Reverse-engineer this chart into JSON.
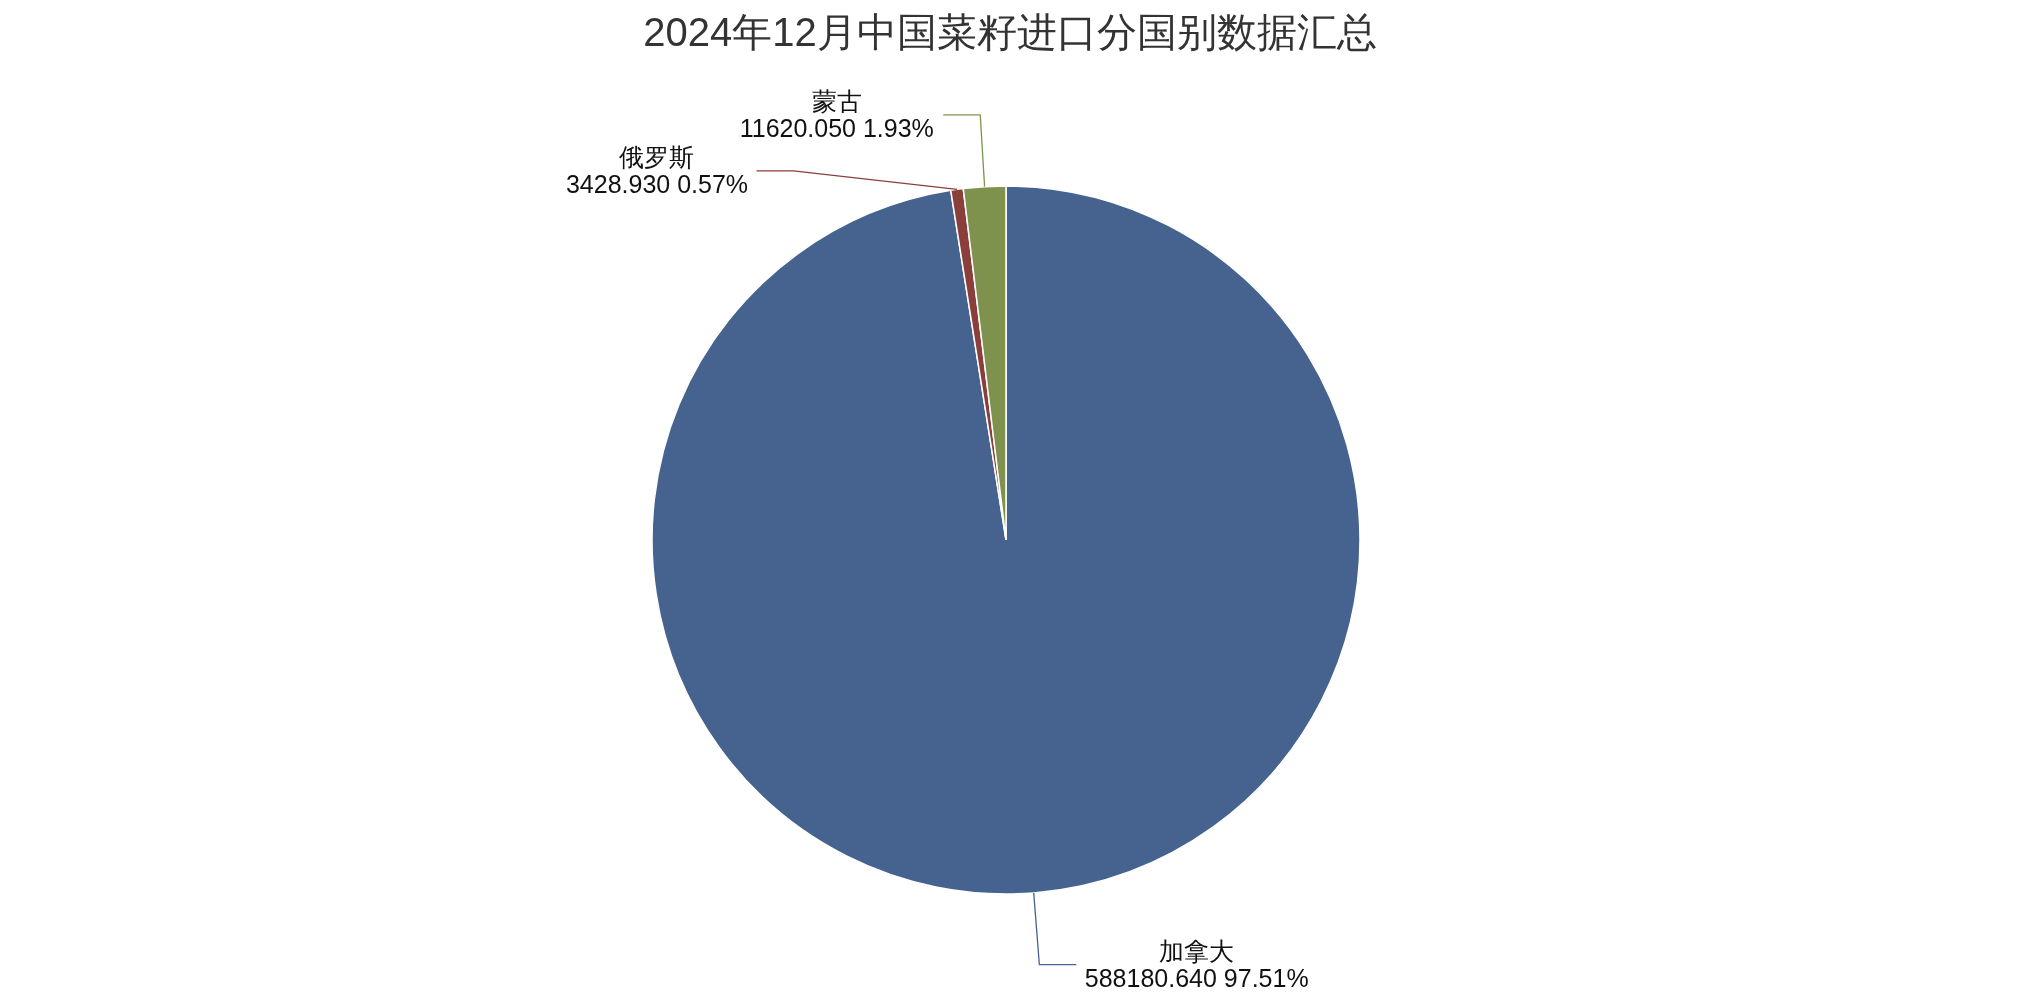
{
  "chart_data": {
    "type": "pie",
    "title": "2024年12月中国菜籽进口分国别数据汇总",
    "categories": [
      "加拿大",
      "俄罗斯",
      "蒙古"
    ],
    "values": [
      588180.64,
      3428.93,
      11620.05
    ],
    "value_labels": [
      "588180.640  97.51%",
      "3428.930  0.57%",
      "11620.050  1.93%"
    ],
    "colors": [
      "#46638f",
      "#8b3f3b",
      "#7e924e"
    ]
  }
}
